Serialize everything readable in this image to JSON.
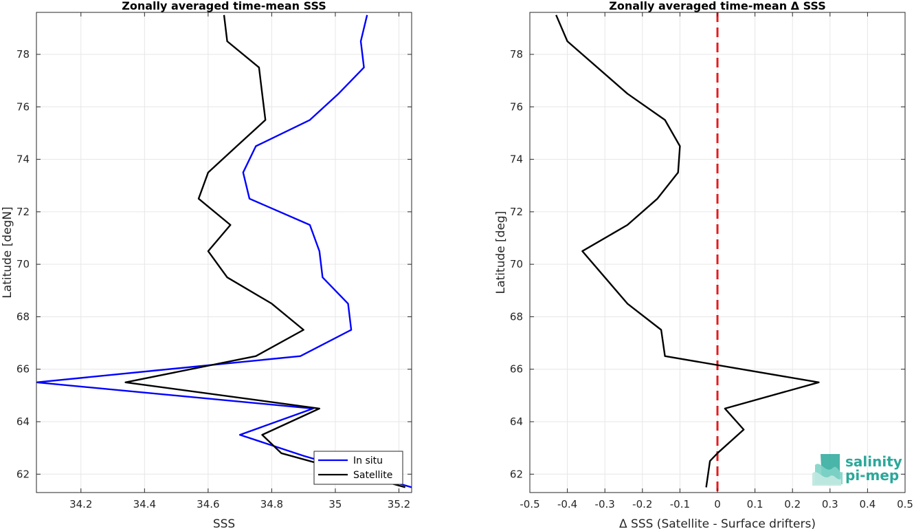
{
  "chart_data": [
    {
      "type": "line",
      "title": "Zonally averaged time-mean SSS",
      "xlabel": "SSS",
      "ylabel": "Latitude [degN]",
      "xlim": [
        34.06,
        35.24
      ],
      "ylim": [
        61.3,
        79.6
      ],
      "xticks": [
        34.2,
        34.4,
        34.6,
        34.8,
        35,
        35.2
      ],
      "xtick_labels": [
        "34.2",
        "34.4",
        "34.6",
        "34.8",
        "35",
        "35.2"
      ],
      "yticks": [
        62,
        64,
        66,
        68,
        70,
        72,
        74,
        76,
        78
      ],
      "ytick_labels": [
        "62",
        "64",
        "66",
        "68",
        "70",
        "72",
        "74",
        "76",
        "78"
      ],
      "grid": true,
      "legend_position": "bottom-right",
      "series": [
        {
          "name": "In situ",
          "color": "#0000ff",
          "points": [
            [
              35.24,
              61.5
            ],
            [
              34.9,
              62.7
            ],
            [
              34.7,
              63.5
            ],
            [
              34.93,
              64.5
            ],
            [
              34.06,
              65.5
            ],
            [
              34.89,
              66.5
            ],
            [
              35.05,
              67.5
            ],
            [
              35.04,
              68.5
            ],
            [
              34.96,
              69.5
            ],
            [
              34.95,
              70.5
            ],
            [
              34.92,
              71.5
            ],
            [
              34.73,
              72.5
            ],
            [
              34.71,
              73.5
            ],
            [
              34.75,
              74.5
            ],
            [
              34.92,
              75.5
            ],
            [
              35.01,
              76.5
            ],
            [
              35.09,
              77.5
            ],
            [
              35.08,
              78.5
            ],
            [
              35.1,
              79.5
            ]
          ]
        },
        {
          "name": "Satellite",
          "color": "#000000",
          "points": [
            [
              35.22,
              61.5
            ],
            [
              34.83,
              62.8
            ],
            [
              34.77,
              63.5
            ],
            [
              34.95,
              64.5
            ],
            [
              34.34,
              65.5
            ],
            [
              34.75,
              66.5
            ],
            [
              34.9,
              67.5
            ],
            [
              34.8,
              68.5
            ],
            [
              34.66,
              69.5
            ],
            [
              34.6,
              70.5
            ],
            [
              34.67,
              71.5
            ],
            [
              34.57,
              72.5
            ],
            [
              34.6,
              73.5
            ],
            [
              34.69,
              74.5
            ],
            [
              34.78,
              75.5
            ],
            [
              34.77,
              76.5
            ],
            [
              34.76,
              77.5
            ],
            [
              34.66,
              78.5
            ],
            [
              34.65,
              79.5
            ]
          ]
        }
      ]
    },
    {
      "type": "line",
      "title": "Zonally averaged time-mean Δ SSS",
      "xlabel": "Δ SSS (Satellite - Surface drifters)",
      "ylabel": "Latitude [deg]",
      "xlim": [
        -0.5,
        0.5
      ],
      "ylim": [
        61.3,
        79.6
      ],
      "xticks": [
        -0.5,
        -0.4,
        -0.3,
        -0.2,
        -0.1,
        0,
        0.1,
        0.2,
        0.3,
        0.4,
        0.5
      ],
      "xtick_labels": [
        "-0.5",
        "-0.4",
        "-0.3",
        "-0.2",
        "-0.1",
        "0",
        "0.1",
        "0.2",
        "0.3",
        "0.4",
        "0.5"
      ],
      "yticks": [
        62,
        64,
        66,
        68,
        70,
        72,
        74,
        76,
        78
      ],
      "ytick_labels": [
        "62",
        "64",
        "66",
        "68",
        "70",
        "72",
        "74",
        "76",
        "78"
      ],
      "grid": true,
      "reference_line": {
        "x": 0,
        "color": "#e41a1c",
        "style": "dashed"
      },
      "series": [
        {
          "color": "#000000",
          "points": [
            [
              -0.03,
              61.5
            ],
            [
              -0.02,
              62.5
            ],
            [
              0.0,
              62.8
            ],
            [
              0.07,
              63.7
            ],
            [
              0.02,
              64.5
            ],
            [
              0.27,
              65.5
            ],
            [
              -0.14,
              66.5
            ],
            [
              -0.15,
              67.5
            ],
            [
              -0.24,
              68.5
            ],
            [
              -0.36,
              70.5
            ],
            [
              -0.24,
              71.5
            ],
            [
              -0.16,
              72.5
            ],
            [
              -0.105,
              73.5
            ],
            [
              -0.1,
              74.5
            ],
            [
              -0.14,
              75.5
            ],
            [
              -0.24,
              76.5
            ],
            [
              -0.4,
              78.5
            ],
            [
              -0.43,
              79.5
            ]
          ]
        }
      ]
    }
  ],
  "logo": {
    "line1": "salinity",
    "line2": "pi-mep",
    "color": "#2aa89a"
  }
}
